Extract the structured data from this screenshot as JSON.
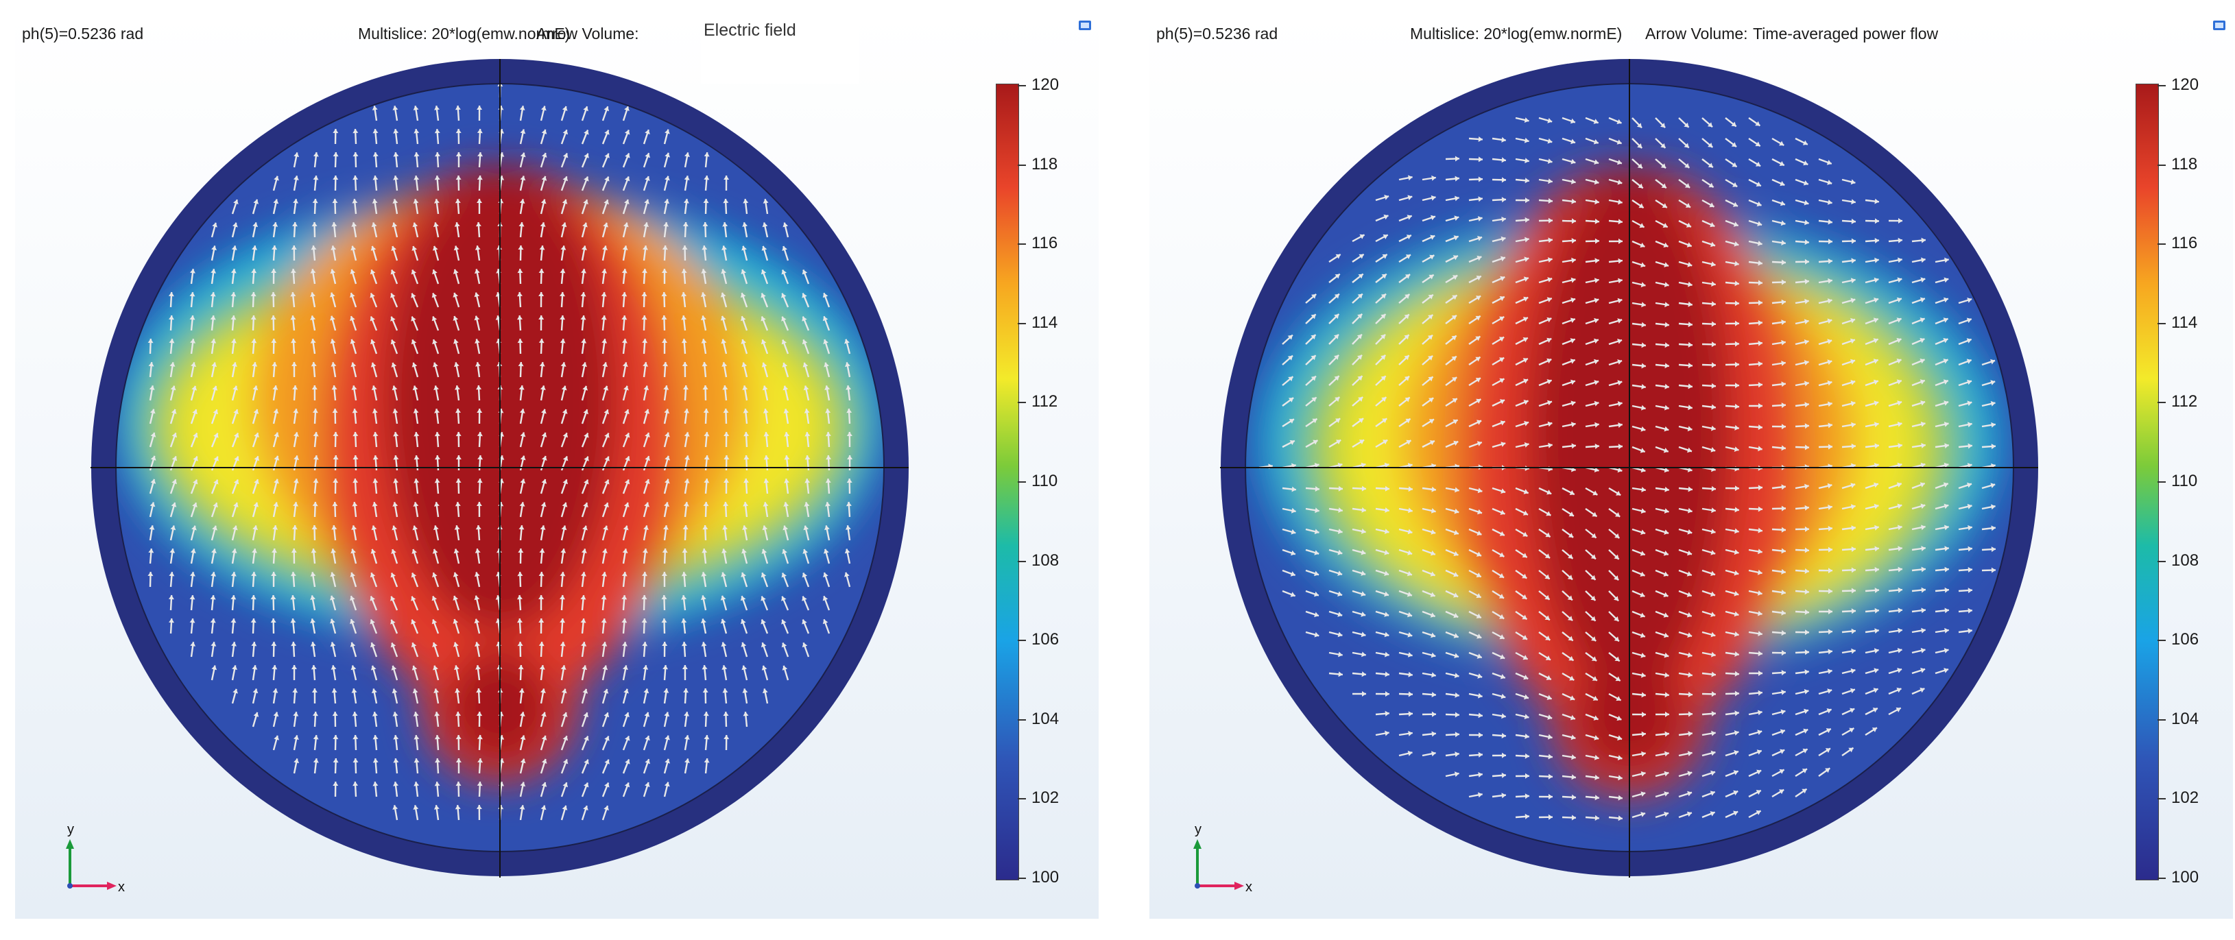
{
  "panels": [
    {
      "parameter": "ph(5)=0.5236 rad",
      "expression": "Multislice: 20*log(emw.normE)",
      "arrow_label": "Arrow Volume:",
      "arrow_value": "Electric field",
      "colorbar_ticks": [
        "120",
        "118",
        "116",
        "114",
        "112",
        "110",
        "108",
        "106",
        "104",
        "102",
        "100"
      ],
      "axis_y": "y",
      "axis_x": "x"
    },
    {
      "parameter": "ph(5)=0.5236 rad",
      "expression": "Multislice: 20*log(emw.normE)",
      "arrow_label": "Arrow Volume:",
      "arrow_value": "Time-averaged power flow",
      "colorbar_ticks": [
        "120",
        "118",
        "116",
        "114",
        "112",
        "110",
        "108",
        "106",
        "104",
        "102",
        "100"
      ],
      "axis_y": "y",
      "axis_x": "x"
    }
  ],
  "colors": {
    "outer_ring": "#27307f",
    "low": "#2f4fb0",
    "mid_cyan": "#19b4d8",
    "mid_green": "#8cc63e",
    "mid_yellow": "#f2e52b",
    "mid_orange": "#f39a20",
    "high_red": "#e23b2a",
    "max": "#a5191c",
    "arrow": "#e8e8e8"
  }
}
